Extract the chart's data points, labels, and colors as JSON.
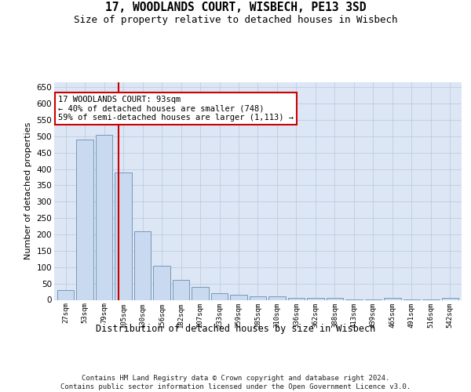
{
  "title1": "17, WOODLANDS COURT, WISBECH, PE13 3SD",
  "title2": "Size of property relative to detached houses in Wisbech",
  "xlabel": "Distribution of detached houses by size in Wisbech",
  "ylabel": "Number of detached properties",
  "categories": [
    "27sqm",
    "53sqm",
    "79sqm",
    "105sqm",
    "130sqm",
    "156sqm",
    "182sqm",
    "207sqm",
    "233sqm",
    "259sqm",
    "285sqm",
    "310sqm",
    "336sqm",
    "362sqm",
    "388sqm",
    "413sqm",
    "439sqm",
    "465sqm",
    "491sqm",
    "516sqm",
    "542sqm"
  ],
  "values": [
    30,
    490,
    505,
    390,
    210,
    105,
    60,
    40,
    20,
    15,
    10,
    10,
    6,
    5,
    5,
    2,
    2,
    5,
    2,
    2,
    5
  ],
  "bar_color": "#c9d9f0",
  "bar_edge_color": "#7799bb",
  "vline_color": "#cc0000",
  "vline_pos": 2.75,
  "annotation_line1": "17 WOODLANDS COURT: 93sqm",
  "annotation_line2": "← 40% of detached houses are smaller (748)",
  "annotation_line3": "59% of semi-detached houses are larger (1,113) →",
  "annotation_box_edge": "#cc0000",
  "ylim_max": 665,
  "yticks": [
    0,
    50,
    100,
    150,
    200,
    250,
    300,
    350,
    400,
    450,
    500,
    550,
    600,
    650
  ],
  "plot_bg_color": "#dce6f5",
  "grid_color": "#b8c8dd",
  "footer_line1": "Contains HM Land Registry data © Crown copyright and database right 2024.",
  "footer_line2": "Contains public sector information licensed under the Open Government Licence v3.0."
}
